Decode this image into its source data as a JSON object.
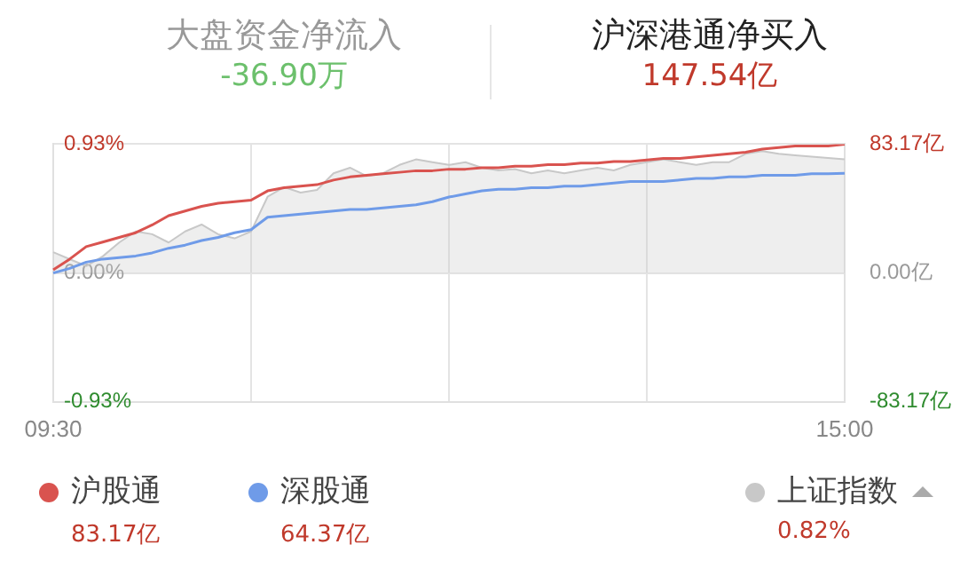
{
  "chart_data": {
    "type": "line",
    "title": "沪深港通净买入",
    "subtitle": "147.54亿",
    "annotations": [
      "大盘资金净流入",
      "-36.90万",
      "83.17亿",
      "64.37亿",
      "0.82%"
    ],
    "categories": [
      "09:30",
      null,
      null,
      null,
      null,
      null,
      null,
      null,
      null,
      null,
      null,
      null,
      null,
      null,
      null,
      null,
      null,
      null,
      null,
      null,
      null,
      null,
      null,
      null,
      null,
      null,
      null,
      null,
      null,
      null,
      null,
      null,
      null,
      null,
      null,
      null,
      null,
      null,
      null,
      null,
      null,
      null,
      null,
      null,
      null,
      null,
      null,
      null,
      "15:00"
    ],
    "series": [
      {
        "name": "上证指数",
        "type": "area",
        "axis": "y",
        "color": "#c8c8c8",
        "values": [
          0.15,
          0.1,
          0.05,
          0.12,
          0.22,
          0.3,
          0.28,
          0.22,
          0.3,
          0.35,
          0.28,
          0.25,
          0.3,
          0.55,
          0.62,
          0.58,
          0.6,
          0.72,
          0.76,
          0.7,
          0.72,
          0.78,
          0.82,
          0.8,
          0.78,
          0.8,
          0.76,
          0.74,
          0.75,
          0.72,
          0.74,
          0.72,
          0.74,
          0.76,
          0.74,
          0.78,
          0.8,
          0.82,
          0.8,
          0.78,
          0.8,
          0.8,
          0.86,
          0.88,
          0.86,
          0.85,
          0.84,
          0.83,
          0.82
        ]
      },
      {
        "name": "沪股通",
        "type": "line",
        "axis": "y2",
        "color": "#d9534f",
        "values": [
          2,
          9,
          17,
          20,
          23,
          26,
          31,
          37,
          40,
          43,
          45,
          46,
          47,
          53,
          55,
          56,
          57,
          60,
          62,
          63,
          64,
          65,
          66,
          66,
          67,
          67,
          68,
          68,
          69,
          69,
          70,
          70,
          71,
          71,
          72,
          72,
          73,
          74,
          74,
          75,
          76,
          77,
          78,
          80,
          81,
          82,
          82,
          82,
          83.17
        ]
      },
      {
        "name": "深股通",
        "type": "line",
        "axis": "y2",
        "color": "#6f9be8",
        "values": [
          0,
          3,
          7,
          9,
          10,
          11,
          13,
          16,
          18,
          21,
          23,
          26,
          28,
          36,
          37,
          38,
          39,
          40,
          41,
          41,
          42,
          43,
          44,
          46,
          49,
          51,
          53,
          54,
          54,
          55,
          55,
          56,
          56,
          57,
          58,
          59,
          59,
          59,
          60,
          61,
          61,
          62,
          62,
          63,
          63,
          63,
          64,
          64,
          64.37
        ]
      }
    ],
    "ylim": [
      -0.93,
      0.93
    ],
    "yticks": [
      {
        "value": -0.93,
        "label": "-0.93%"
      },
      {
        "value": 0,
        "label": "0.00%"
      },
      {
        "value": 0.93,
        "label": "0.93%"
      }
    ],
    "y2lim": [
      -83.17,
      83.17
    ],
    "y2ticks": [
      {
        "value": -83.17,
        "label": "-83.17亿"
      },
      {
        "value": 0,
        "label": "0.00亿"
      },
      {
        "value": 83.17,
        "label": "83.17亿"
      }
    ],
    "grid": true,
    "legend": "bottom",
    "marker": "none",
    "line_style": "solid"
  }
}
